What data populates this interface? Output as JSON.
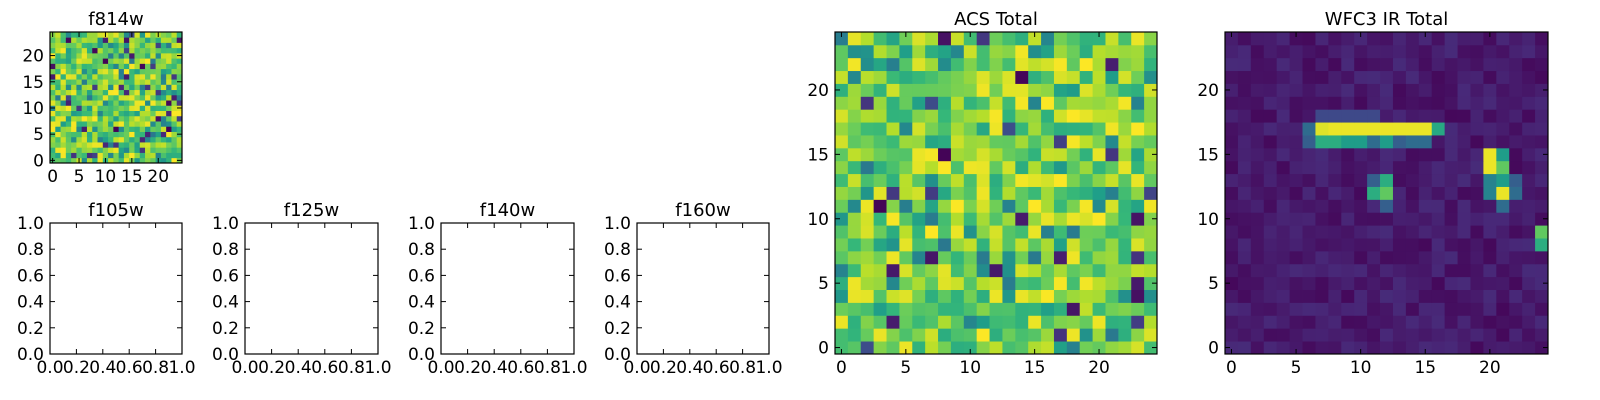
{
  "chart_data": [
    {
      "type": "heatmap",
      "title": "f814w",
      "xlim": [
        -0.5,
        24.5
      ],
      "ylim": [
        -0.5,
        24.5
      ],
      "xticks": [
        0,
        5,
        10,
        15,
        20
      ],
      "yticks": [
        0,
        5,
        10,
        15,
        20
      ],
      "colormap": "viridis",
      "pattern": "noise"
    },
    {
      "type": "heatmap",
      "title": "f105w",
      "empty": true,
      "xlim": [
        0,
        1
      ],
      "ylim": [
        0,
        1
      ],
      "xticks": [
        "0.0",
        "0.2",
        "0.4",
        "0.6",
        "0.8",
        "1.0"
      ],
      "yticks": [
        "0.0",
        "0.2",
        "0.4",
        "0.6",
        "0.8",
        "1.0"
      ]
    },
    {
      "type": "heatmap",
      "title": "f125w",
      "empty": true,
      "xlim": [
        0,
        1
      ],
      "ylim": [
        0,
        1
      ],
      "xticks": [
        "0.0",
        "0.2",
        "0.4",
        "0.6",
        "0.8",
        "1.0"
      ],
      "yticks": [
        "0.0",
        "0.2",
        "0.4",
        "0.6",
        "0.8",
        "1.0"
      ]
    },
    {
      "type": "heatmap",
      "title": "f140w",
      "empty": true,
      "xlim": [
        0,
        1
      ],
      "ylim": [
        0,
        1
      ],
      "xticks": [
        "0.0",
        "0.2",
        "0.4",
        "0.6",
        "0.8",
        "1.0"
      ],
      "yticks": [
        "0.0",
        "0.2",
        "0.4",
        "0.6",
        "0.8",
        "1.0"
      ]
    },
    {
      "type": "heatmap",
      "title": "f160w",
      "empty": true,
      "xlim": [
        0,
        1
      ],
      "ylim": [
        0,
        1
      ],
      "xticks": [
        "0.0",
        "0.2",
        "0.4",
        "0.6",
        "0.8",
        "1.0"
      ],
      "yticks": [
        "0.0",
        "0.2",
        "0.4",
        "0.6",
        "0.8",
        "1.0"
      ]
    },
    {
      "type": "heatmap",
      "title": "ACS Total",
      "xlim": [
        -0.5,
        24.5
      ],
      "ylim": [
        -0.5,
        24.5
      ],
      "xticks": [
        0,
        5,
        10,
        15,
        20
      ],
      "yticks": [
        0,
        5,
        10,
        15,
        20
      ],
      "colormap": "viridis",
      "pattern": "noise"
    },
    {
      "type": "heatmap",
      "title": "WFC3 IR Total",
      "xlim": [
        -0.5,
        24.5
      ],
      "ylim": [
        -0.5,
        24.5
      ],
      "xticks": [
        0,
        5,
        10,
        15,
        20
      ],
      "yticks": [
        0,
        5,
        10,
        15,
        20
      ],
      "colormap": "viridis",
      "pattern": "sources",
      "sources": [
        {
          "x": 6,
          "y": 17,
          "value": 0.35
        },
        {
          "x": 7,
          "y": 17,
          "value": 0.95
        },
        {
          "x": 8,
          "y": 17,
          "value": 0.97
        },
        {
          "x": 9,
          "y": 17,
          "value": 0.97
        },
        {
          "x": 10,
          "y": 17,
          "value": 0.97
        },
        {
          "x": 11,
          "y": 17,
          "value": 0.97
        },
        {
          "x": 12,
          "y": 17,
          "value": 0.97
        },
        {
          "x": 13,
          "y": 17,
          "value": 0.97
        },
        {
          "x": 14,
          "y": 17,
          "value": 0.97
        },
        {
          "x": 15,
          "y": 17,
          "value": 0.97
        },
        {
          "x": 16,
          "y": 17,
          "value": 0.6
        },
        {
          "x": 7,
          "y": 18,
          "value": 0.22
        },
        {
          "x": 8,
          "y": 18,
          "value": 0.22
        },
        {
          "x": 9,
          "y": 18,
          "value": 0.22
        },
        {
          "x": 10,
          "y": 18,
          "value": 0.22
        },
        {
          "x": 11,
          "y": 18,
          "value": 0.22
        },
        {
          "x": 6,
          "y": 16,
          "value": 0.3
        },
        {
          "x": 7,
          "y": 16,
          "value": 0.62
        },
        {
          "x": 8,
          "y": 16,
          "value": 0.62
        },
        {
          "x": 9,
          "y": 16,
          "value": 0.55
        },
        {
          "x": 10,
          "y": 16,
          "value": 0.55
        },
        {
          "x": 11,
          "y": 16,
          "value": 0.35
        },
        {
          "x": 12,
          "y": 16,
          "value": 0.55
        },
        {
          "x": 13,
          "y": 16,
          "value": 0.3
        },
        {
          "x": 14,
          "y": 16,
          "value": 0.35
        },
        {
          "x": 15,
          "y": 16,
          "value": 0.35
        },
        {
          "x": 20,
          "y": 15,
          "value": 0.97
        },
        {
          "x": 21,
          "y": 15,
          "value": 0.55
        },
        {
          "x": 20,
          "y": 14,
          "value": 0.97
        },
        {
          "x": 21,
          "y": 14,
          "value": 0.75
        },
        {
          "x": 20,
          "y": 13,
          "value": 0.45
        },
        {
          "x": 21,
          "y": 13,
          "value": 0.55
        },
        {
          "x": 22,
          "y": 13,
          "value": 0.3
        },
        {
          "x": 20,
          "y": 12,
          "value": 0.45
        },
        {
          "x": 21,
          "y": 12,
          "value": 0.97
        },
        {
          "x": 22,
          "y": 12,
          "value": 0.35
        },
        {
          "x": 21,
          "y": 11,
          "value": 0.35
        },
        {
          "x": 11,
          "y": 13,
          "value": 0.3
        },
        {
          "x": 12,
          "y": 13,
          "value": 0.62
        },
        {
          "x": 11,
          "y": 12,
          "value": 0.62
        },
        {
          "x": 12,
          "y": 12,
          "value": 0.75
        },
        {
          "x": 12,
          "y": 11,
          "value": 0.3
        },
        {
          "x": 24,
          "y": 9,
          "value": 0.75
        },
        {
          "x": 24,
          "y": 8,
          "value": 0.62
        }
      ]
    }
  ]
}
